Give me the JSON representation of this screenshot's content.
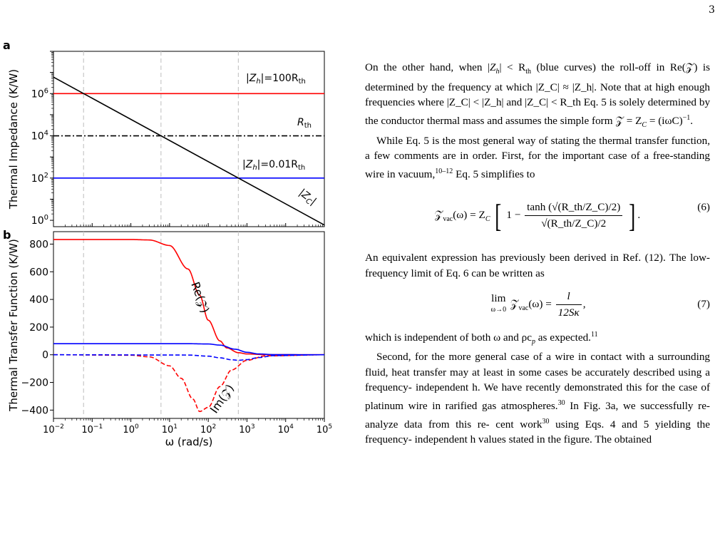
{
  "page_number": "3",
  "figure": {
    "panel_a_letter": "a",
    "panel_b_letter": "b",
    "panel_a": {
      "ylabel": "Thermal Impedance (K/W)",
      "yticks": [
        "10",
        "10",
        "10",
        "10"
      ],
      "ytick_exps": [
        "0",
        "2",
        "4",
        "6"
      ],
      "labels": {
        "zh_high": "|Z",
        "zh_high_sub": "h",
        "zh_high_rest": "|=100R",
        "zh_high_sub2": "th",
        "rth": "R",
        "rth_sub": "th",
        "zh_low": "|Z",
        "zh_low_sub": "h",
        "zh_low_rest": "|=0.01R",
        "zh_low_sub2": "th",
        "zc": "|Z",
        "zc_sub": "C",
        "zc_rest": "|"
      }
    },
    "panel_b": {
      "ylabel": "Thermal Transfer Function (K/W)",
      "xlabel": "ω (rad/s)",
      "yticks": [
        "800",
        "600",
        "400",
        "200",
        "0",
        "−200",
        "−400"
      ],
      "xtick_base": "10",
      "xtick_exps": [
        "−2",
        "−1",
        "0",
        "1",
        "2",
        "3",
        "4",
        "5"
      ],
      "re_label": "Re(𝒵)",
      "im_label": "Im(𝒵)"
    }
  },
  "chart_data": [
    {
      "type": "line",
      "panel": "a",
      "x_scale": "log",
      "y_scale": "log",
      "xlim": [
        0.01,
        100000
      ],
      "ylim": [
        0.5,
        100000000
      ],
      "ylabel": "Thermal Impedance (K/W)",
      "series": [
        {
          "name": "|Zh|=100Rth",
          "color": "#ff0000",
          "style": "solid",
          "x": [
            0.01,
            100000
          ],
          "y": [
            1000000,
            1000000
          ]
        },
        {
          "name": "Rth",
          "color": "#000000",
          "style": "dashdot",
          "x": [
            0.01,
            100000
          ],
          "y": [
            10000,
            10000
          ]
        },
        {
          "name": "|Zh|=0.01Rth",
          "color": "#0000ff",
          "style": "solid",
          "x": [
            0.01,
            100000
          ],
          "y": [
            100,
            100
          ]
        },
        {
          "name": "|ZC|",
          "color": "#000000",
          "style": "solid",
          "x": [
            0.01,
            100000
          ],
          "y": [
            6000000,
            0.6
          ]
        }
      ],
      "vlines": [
        0.06,
        6,
        600
      ],
      "grid": false
    },
    {
      "type": "line",
      "panel": "b",
      "x_scale": "log",
      "xlim": [
        0.01,
        100000
      ],
      "ylim": [
        -460,
        890
      ],
      "xlabel": "ω (rad/s)",
      "ylabel": "Thermal Transfer Function (K/W)",
      "series": [
        {
          "name": "Re(Z) red",
          "color": "#ff0000",
          "style": "solid",
          "x": [
            0.01,
            1,
            3,
            10,
            30,
            60,
            100,
            200,
            300,
            600,
            1000,
            3000,
            100000
          ],
          "y": [
            833,
            833,
            830,
            790,
            620,
            430,
            250,
            100,
            50,
            15,
            6,
            1,
            0
          ]
        },
        {
          "name": "Im(Z) red",
          "color": "#ff0000",
          "style": "dashed",
          "x": [
            0.01,
            1,
            3,
            10,
            20,
            40,
            60,
            100,
            200,
            400,
            1000,
            3000,
            100000
          ],
          "y": [
            0,
            -3,
            -15,
            -80,
            -170,
            -320,
            -410,
            -380,
            -230,
            -110,
            -40,
            -8,
            0
          ]
        },
        {
          "name": "Re(Z) blue",
          "color": "#0000ff",
          "style": "solid",
          "x": [
            0.01,
            30,
            100,
            200,
            500,
            1000,
            2000,
            5000,
            100000
          ],
          "y": [
            80,
            80,
            78,
            70,
            40,
            18,
            6,
            1,
            0
          ]
        },
        {
          "name": "Im(Z) blue",
          "color": "#0000ff",
          "style": "dashed",
          "x": [
            0.01,
            30,
            100,
            200,
            400,
            600,
            1000,
            2000,
            5000,
            100000
          ],
          "y": [
            0,
            -2,
            -10,
            -22,
            -36,
            -40,
            -35,
            -20,
            -6,
            0
          ]
        }
      ],
      "vlines": [
        0.06,
        6,
        600
      ],
      "grid": false
    }
  ],
  "text": {
    "p1_l1_a": "On the other hand, when |",
    "p1_l1_b": "Z",
    "p1_l1_c": "h",
    "p1_l1_d": "| < R",
    "p1_l1_e": "th",
    "p1_l1_f": " (blue curves) the",
    "p1_l2": "roll-off in Re(𝒵) is determined by the frequency at which",
    "p1_l3": "|Z_C| ≈ |Z_h|. Note that at high enough frequencies where",
    "p1_l4": "|Z_C| < |Z_h| and |Z_C| < R_th Eq. 5 is solely determined",
    "p1_l5": "by the conductor thermal mass and assumes the simple",
    "p1_l6_a": "form 𝒵 = Z",
    "p1_l6_b": "C",
    "p1_l6_c": " = (iωC)",
    "p1_l6_d": "−1",
    "p1_l6_e": ".",
    "p2_l1": "While Eq. 5 is the most general way of stating the",
    "p2_l2": "thermal transfer function, a few comments are in order.",
    "p2_l3": "First, for the important case of a free-standing wire in",
    "p2_l4_a": "vacuum,",
    "p2_l4_b": "10–12",
    "p2_l4_c": " Eq. 5 simplifies to",
    "eq6_lhs": "𝒵",
    "eq6_lhs_sub": "vac",
    "eq6_lhs_rest": "(ω) = Z",
    "eq6_zc_sub": "C",
    "eq6_one": "1 −",
    "eq6_num": "tanh (√(R_th/Z_C)/2)",
    "eq6_den": "√(R_th/Z_C)/2",
    "eq6_dot": ".",
    "eq6_number": "(6)",
    "p3_l1": "An equivalent expression has previously been derived in",
    "p3_l2": "Ref. (12). The low-frequency limit of Eq. 6 can be written",
    "p3_l3": "as",
    "eq7_lim": "lim",
    "eq7_sub": "ω→0",
    "eq7_mid": "𝒵",
    "eq7_mid_sub": "vac",
    "eq7_mid_rest": "(ω) =",
    "eq7_num": "l",
    "eq7_den": "12Sκ",
    "eq7_comma": ",",
    "eq7_number": "(7)",
    "p4_l1_a": "which is independent of both ω and ρc",
    "p4_l1_b": "p",
    "p4_l1_c": " as expected.",
    "p4_l1_d": "11",
    "p5_l1": "Second, for the more general case of a wire in contact",
    "p5_l2": "with a surrounding fluid, heat transfer may at least in",
    "p5_l3": "some cases be accurately described using a frequency-",
    "p5_l4": "independent h. We have recently demonstrated this for",
    "p5_l5_a": "the case of platinum wire in rarified gas atmospheres.",
    "p5_l5_b": "30",
    "p5_l6": "In Fig. 3a, we successfully re-analyze data from this re-",
    "p5_l7_a": "cent work",
    "p5_l7_b": "30",
    "p5_l7_c": " using Eqs. 4 and 5 yielding the frequency-",
    "p5_l8": "independent h values stated in the figure. The obtained"
  }
}
